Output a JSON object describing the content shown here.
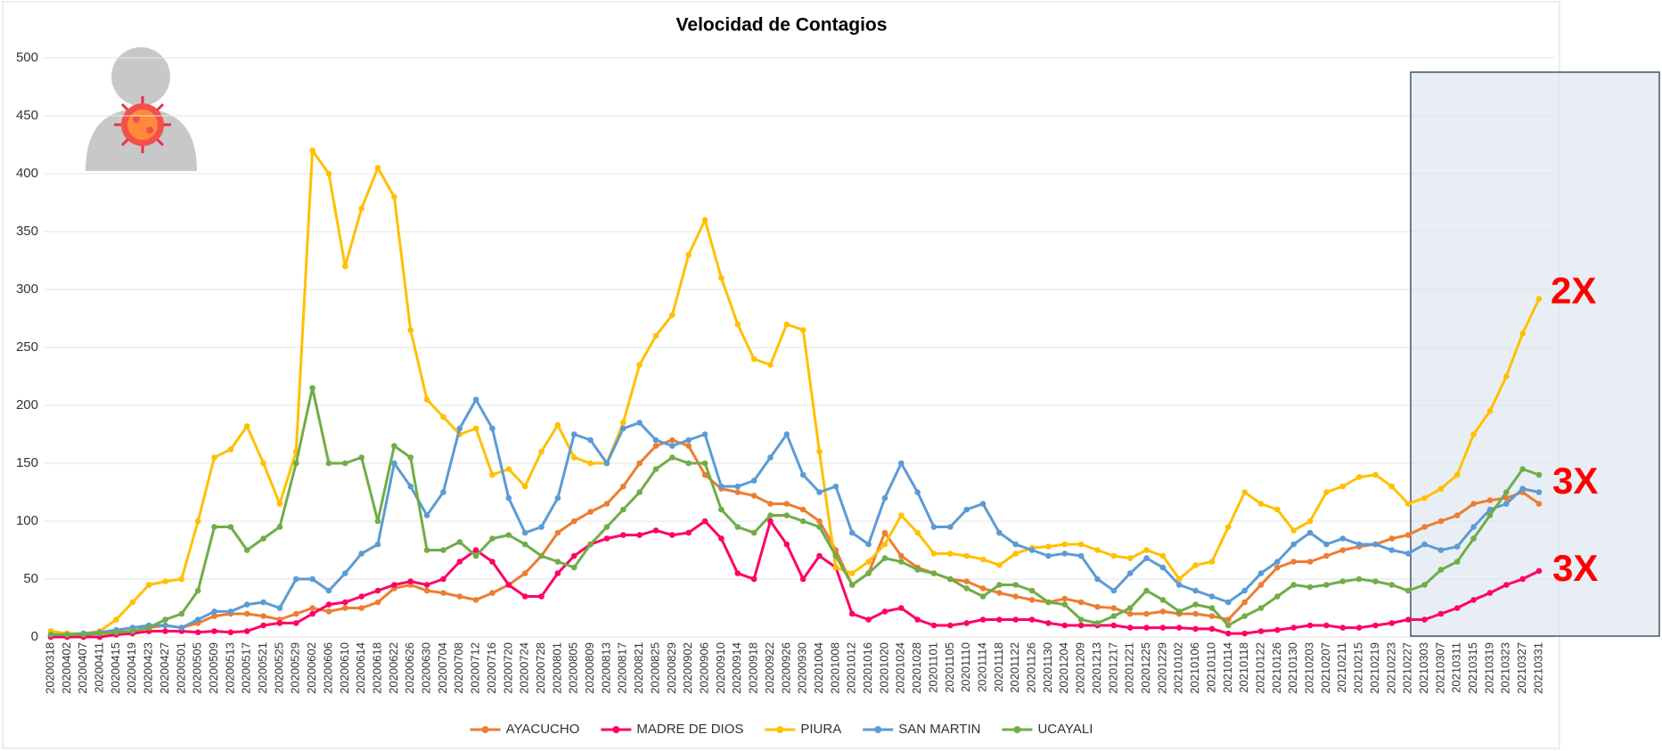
{
  "chart_data": {
    "type": "line",
    "title": "Velocidad de Contagios",
    "categories": [
      "20200318",
      "20200402",
      "20200407",
      "20200411",
      "20200415",
      "20200419",
      "20200423",
      "20200427",
      "20200501",
      "20200505",
      "20200509",
      "20200513",
      "20200517",
      "20200521",
      "20200525",
      "20200529",
      "20200602",
      "20200606",
      "20200610",
      "20200614",
      "20200618",
      "20200622",
      "20200626",
      "20200630",
      "20200704",
      "20200708",
      "20200712",
      "20200716",
      "20200720",
      "20200724",
      "20200728",
      "20200801",
      "20200805",
      "20200809",
      "20200813",
      "20200817",
      "20200821",
      "20200825",
      "20200829",
      "20200902",
      "20200906",
      "20200910",
      "20200914",
      "20200918",
      "20200922",
      "20200926",
      "20200930",
      "20201004",
      "20201008",
      "20201012",
      "20201016",
      "20201020",
      "20201024",
      "20201028",
      "20201101",
      "20201105",
      "20201110",
      "20201114",
      "20201118",
      "20201122",
      "20201126",
      "20201130",
      "20201204",
      "20201209",
      "20201213",
      "20201217",
      "20201221",
      "20201225",
      "20201229",
      "20210102",
      "20210106",
      "20210110",
      "20210114",
      "20210118",
      "20210122",
      "20210126",
      "20210130",
      "20210203",
      "20210207",
      "20210211",
      "20210215",
      "20210219",
      "20210223",
      "20210227",
      "20210303",
      "20210307",
      "20210311",
      "20210315",
      "20210319",
      "20210323",
      "20210327",
      "20210331"
    ],
    "series": [
      {
        "name": "AYACUCHO",
        "color": "#ed7d31",
        "values": [
          2,
          2,
          2,
          3,
          4,
          5,
          8,
          10,
          8,
          12,
          18,
          20,
          20,
          18,
          15,
          20,
          25,
          22,
          25,
          25,
          30,
          42,
          45,
          40,
          38,
          35,
          32,
          38,
          45,
          55,
          70,
          90,
          100,
          108,
          115,
          130,
          150,
          165,
          170,
          165,
          140,
          128,
          125,
          122,
          115,
          115,
          110,
          100,
          75,
          45,
          55,
          90,
          70,
          60,
          55,
          50,
          48,
          42,
          38,
          35,
          32,
          30,
          33,
          30,
          26,
          25,
          20,
          20,
          22,
          20,
          20,
          18,
          15,
          30,
          45,
          60,
          65,
          65,
          70,
          75,
          78,
          80,
          85,
          88,
          95,
          100,
          105,
          115,
          118,
          120,
          125,
          115
        ]
      },
      {
        "name": "MADRE DE DIOS",
        "color": "#ff0066",
        "values": [
          0,
          0,
          0,
          0,
          2,
          3,
          5,
          5,
          5,
          4,
          5,
          4,
          5,
          10,
          12,
          12,
          20,
          28,
          30,
          35,
          40,
          45,
          48,
          45,
          50,
          65,
          75,
          65,
          45,
          35,
          35,
          55,
          70,
          80,
          85,
          88,
          88,
          92,
          88,
          90,
          100,
          85,
          55,
          50,
          100,
          80,
          50,
          70,
          60,
          20,
          15,
          22,
          25,
          15,
          10,
          10,
          12,
          15,
          15,
          15,
          15,
          12,
          10,
          10,
          10,
          10,
          8,
          8,
          8,
          8,
          7,
          7,
          3,
          3,
          5,
          6,
          8,
          10,
          10,
          8,
          8,
          10,
          12,
          15,
          15,
          20,
          25,
          32,
          38,
          45,
          50,
          57
        ]
      },
      {
        "name": "PIURA",
        "color": "#ffc000",
        "values": [
          5,
          3,
          3,
          5,
          15,
          30,
          45,
          48,
          50,
          100,
          155,
          162,
          182,
          150,
          115,
          160,
          420,
          400,
          320,
          370,
          405,
          380,
          265,
          205,
          190,
          175,
          180,
          140,
          145,
          130,
          160,
          183,
          155,
          150,
          150,
          185,
          235,
          260,
          278,
          330,
          360,
          310,
          270,
          240,
          235,
          270,
          265,
          160,
          60,
          55,
          65,
          80,
          105,
          90,
          72,
          72,
          70,
          67,
          62,
          72,
          77,
          78,
          80,
          80,
          75,
          70,
          68,
          75,
          70,
          50,
          62,
          65,
          95,
          125,
          115,
          110,
          92,
          100,
          125,
          130,
          138,
          140,
          130,
          115,
          120,
          128,
          140,
          175,
          195,
          225,
          262,
          292
        ]
      },
      {
        "name": "SAN MARTIN",
        "color": "#5b9bd5",
        "values": [
          2,
          2,
          3,
          4,
          6,
          8,
          10,
          10,
          8,
          15,
          22,
          22,
          28,
          30,
          25,
          50,
          50,
          40,
          55,
          72,
          80,
          150,
          130,
          105,
          125,
          180,
          205,
          180,
          120,
          90,
          95,
          120,
          175,
          170,
          150,
          180,
          185,
          170,
          165,
          170,
          175,
          130,
          130,
          135,
          155,
          175,
          140,
          125,
          130,
          90,
          80,
          120,
          150,
          125,
          95,
          95,
          110,
          115,
          90,
          80,
          75,
          70,
          72,
          70,
          50,
          40,
          55,
          68,
          60,
          45,
          40,
          35,
          30,
          40,
          55,
          65,
          80,
          90,
          80,
          85,
          80,
          80,
          75,
          72,
          80,
          75,
          78,
          95,
          110,
          115,
          128,
          125
        ]
      },
      {
        "name": "UCAYALI",
        "color": "#70ad47",
        "values": [
          2,
          2,
          2,
          3,
          4,
          5,
          8,
          15,
          20,
          40,
          95,
          95,
          75,
          85,
          95,
          150,
          215,
          150,
          150,
          155,
          100,
          165,
          155,
          75,
          75,
          82,
          70,
          85,
          88,
          80,
          70,
          65,
          60,
          80,
          95,
          110,
          125,
          145,
          155,
          150,
          150,
          110,
          95,
          90,
          105,
          105,
          100,
          95,
          70,
          45,
          55,
          68,
          65,
          58,
          55,
          50,
          42,
          35,
          45,
          45,
          40,
          30,
          28,
          15,
          12,
          18,
          25,
          40,
          32,
          22,
          28,
          25,
          10,
          18,
          25,
          35,
          45,
          43,
          45,
          48,
          50,
          48,
          45,
          40,
          45,
          58,
          65,
          85,
          105,
          125,
          145,
          140
        ]
      }
    ],
    "ylim": [
      0,
      500
    ],
    "yticks": [
      0,
      50,
      100,
      150,
      200,
      250,
      300,
      350,
      400,
      450,
      500
    ],
    "grid": true,
    "legend": "bottom",
    "annotations": [
      {
        "text": "2X",
        "color": "#ff0000"
      },
      {
        "text": "3X",
        "color": "#ff0000"
      },
      {
        "text": "3X",
        "color": "#ff0000"
      }
    ]
  }
}
